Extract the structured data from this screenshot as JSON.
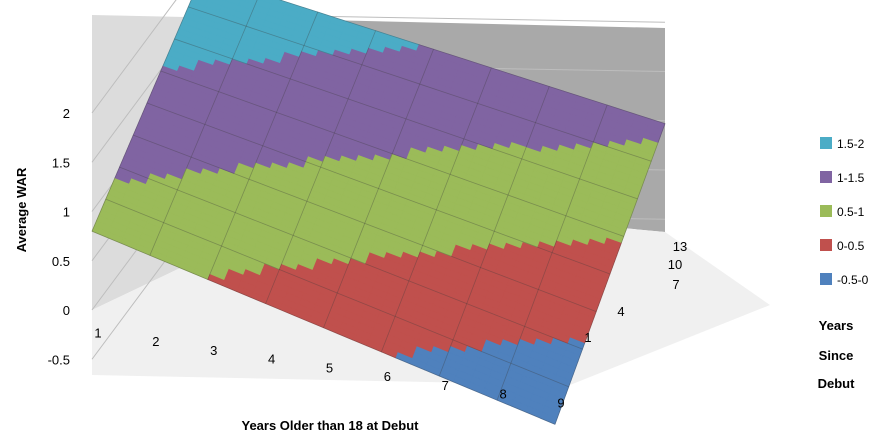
{
  "chart_data": {
    "type": "surface",
    "title": "",
    "xlabel": "Years Older than 18 at Debut",
    "ylabel": "Average WAR",
    "depth_label": [
      "Years",
      "Since",
      "Debut"
    ],
    "x_categories": [
      "1",
      "2",
      "3",
      "4",
      "5",
      "6",
      "7",
      "8",
      "9"
    ],
    "depth_categories": [
      "1",
      "4",
      "7",
      "10",
      "13"
    ],
    "zlim": [
      -0.5,
      2
    ],
    "z_ticks": [
      "-0.5",
      "0",
      "0.5",
      "1",
      "1.5",
      "2"
    ],
    "surface": {
      "corners": [
        {
          "x": 1,
          "depth": 13,
          "war": 1.9
        },
        {
          "x": 9,
          "depth": 13,
          "war": 1.1
        },
        {
          "x": 1,
          "depth": 1,
          "war": 0.8
        },
        {
          "x": 9,
          "depth": 1,
          "war": -0.45
        }
      ]
    },
    "series": [
      {
        "name": "1.5-2",
        "color": "#4bacc6"
      },
      {
        "name": "1-1.5",
        "color": "#8064a2"
      },
      {
        "name": "0.5-1",
        "color": "#9bbb59"
      },
      {
        "name": "0-0.5",
        "color": "#c0504d"
      },
      {
        "name": "-0.5-0",
        "color": "#4f81bd"
      }
    ],
    "legend_position": "right",
    "grid": true
  }
}
